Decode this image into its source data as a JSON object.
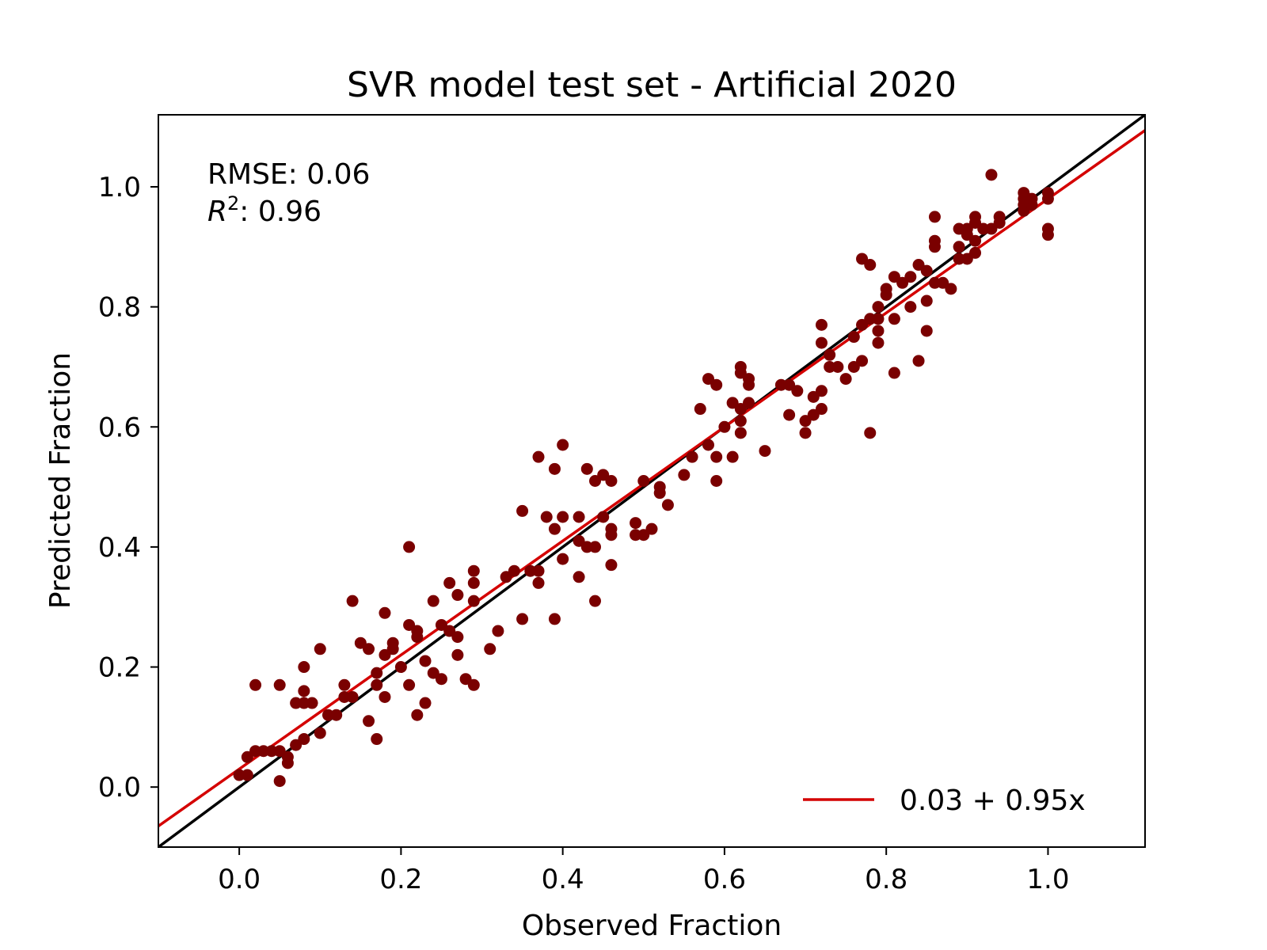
{
  "chart_data": {
    "type": "scatter",
    "title": "SVR model test set - Artificial 2020",
    "xlabel": "Observed Fraction",
    "ylabel": "Predicted Fraction",
    "xlim": [
      -0.1,
      1.12
    ],
    "ylim": [
      -0.1,
      1.12
    ],
    "xticks": [
      "0.0",
      "0.2",
      "0.4",
      "0.6",
      "0.8",
      "1.0"
    ],
    "yticks": [
      "0.0",
      "0.2",
      "0.4",
      "0.6",
      "0.8",
      "1.0"
    ],
    "annotations": {
      "rmse": "RMSE: 0.06",
      "r2_symbol": "R",
      "r2_exp": "2",
      "r2_value": ": 0.96"
    },
    "point_color": "#7a0000",
    "identity_color": "#000000",
    "fit_color": "#d40000",
    "fit": {
      "intercept": 0.03,
      "slope": 0.95,
      "label": "0.03 + 0.95x"
    },
    "legend_position": "lower-right",
    "grid": false,
    "points": [
      [
        0.0,
        0.02
      ],
      [
        0.01,
        0.02
      ],
      [
        0.01,
        0.05
      ],
      [
        0.02,
        0.06
      ],
      [
        0.02,
        0.17
      ],
      [
        0.03,
        0.06
      ],
      [
        0.04,
        0.06
      ],
      [
        0.05,
        0.06
      ],
      [
        0.05,
        0.01
      ],
      [
        0.05,
        0.17
      ],
      [
        0.06,
        0.04
      ],
      [
        0.06,
        0.05
      ],
      [
        0.07,
        0.14
      ],
      [
        0.07,
        0.07
      ],
      [
        0.08,
        0.08
      ],
      [
        0.08,
        0.14
      ],
      [
        0.08,
        0.16
      ],
      [
        0.08,
        0.2
      ],
      [
        0.09,
        0.14
      ],
      [
        0.1,
        0.09
      ],
      [
        0.1,
        0.23
      ],
      [
        0.11,
        0.12
      ],
      [
        0.12,
        0.12
      ],
      [
        0.13,
        0.17
      ],
      [
        0.13,
        0.15
      ],
      [
        0.14,
        0.31
      ],
      [
        0.14,
        0.15
      ],
      [
        0.15,
        0.24
      ],
      [
        0.16,
        0.23
      ],
      [
        0.16,
        0.11
      ],
      [
        0.17,
        0.19
      ],
      [
        0.17,
        0.17
      ],
      [
        0.17,
        0.08
      ],
      [
        0.18,
        0.15
      ],
      [
        0.18,
        0.22
      ],
      [
        0.18,
        0.29
      ],
      [
        0.19,
        0.24
      ],
      [
        0.19,
        0.23
      ],
      [
        0.2,
        0.2
      ],
      [
        0.21,
        0.17
      ],
      [
        0.21,
        0.4
      ],
      [
        0.21,
        0.27
      ],
      [
        0.22,
        0.25
      ],
      [
        0.22,
        0.26
      ],
      [
        0.22,
        0.12
      ],
      [
        0.23,
        0.14
      ],
      [
        0.23,
        0.21
      ],
      [
        0.24,
        0.31
      ],
      [
        0.24,
        0.19
      ],
      [
        0.25,
        0.18
      ],
      [
        0.25,
        0.27
      ],
      [
        0.26,
        0.34
      ],
      [
        0.26,
        0.26
      ],
      [
        0.27,
        0.22
      ],
      [
        0.27,
        0.32
      ],
      [
        0.27,
        0.25
      ],
      [
        0.28,
        0.18
      ],
      [
        0.29,
        0.31
      ],
      [
        0.29,
        0.36
      ],
      [
        0.29,
        0.17
      ],
      [
        0.29,
        0.34
      ],
      [
        0.31,
        0.23
      ],
      [
        0.32,
        0.26
      ],
      [
        0.33,
        0.35
      ],
      [
        0.34,
        0.36
      ],
      [
        0.35,
        0.46
      ],
      [
        0.35,
        0.28
      ],
      [
        0.36,
        0.36
      ],
      [
        0.37,
        0.34
      ],
      [
        0.37,
        0.36
      ],
      [
        0.37,
        0.55
      ],
      [
        0.38,
        0.45
      ],
      [
        0.39,
        0.43
      ],
      [
        0.39,
        0.53
      ],
      [
        0.39,
        0.28
      ],
      [
        0.4,
        0.57
      ],
      [
        0.4,
        0.45
      ],
      [
        0.4,
        0.38
      ],
      [
        0.42,
        0.35
      ],
      [
        0.42,
        0.41
      ],
      [
        0.42,
        0.45
      ],
      [
        0.43,
        0.4
      ],
      [
        0.43,
        0.53
      ],
      [
        0.44,
        0.31
      ],
      [
        0.44,
        0.4
      ],
      [
        0.44,
        0.51
      ],
      [
        0.45,
        0.52
      ],
      [
        0.45,
        0.45
      ],
      [
        0.46,
        0.51
      ],
      [
        0.46,
        0.37
      ],
      [
        0.46,
        0.42
      ],
      [
        0.46,
        0.43
      ],
      [
        0.49,
        0.44
      ],
      [
        0.49,
        0.42
      ],
      [
        0.5,
        0.42
      ],
      [
        0.5,
        0.51
      ],
      [
        0.51,
        0.43
      ],
      [
        0.52,
        0.5
      ],
      [
        0.52,
        0.49
      ],
      [
        0.53,
        0.47
      ],
      [
        0.55,
        0.52
      ],
      [
        0.56,
        0.55
      ],
      [
        0.57,
        0.63
      ],
      [
        0.58,
        0.57
      ],
      [
        0.58,
        0.68
      ],
      [
        0.59,
        0.55
      ],
      [
        0.59,
        0.51
      ],
      [
        0.59,
        0.67
      ],
      [
        0.6,
        0.6
      ],
      [
        0.61,
        0.55
      ],
      [
        0.61,
        0.64
      ],
      [
        0.62,
        0.63
      ],
      [
        0.62,
        0.59
      ],
      [
        0.62,
        0.61
      ],
      [
        0.62,
        0.7
      ],
      [
        0.62,
        0.69
      ],
      [
        0.63,
        0.64
      ],
      [
        0.63,
        0.68
      ],
      [
        0.63,
        0.67
      ],
      [
        0.65,
        0.56
      ],
      [
        0.67,
        0.67
      ],
      [
        0.68,
        0.62
      ],
      [
        0.68,
        0.67
      ],
      [
        0.69,
        0.66
      ],
      [
        0.7,
        0.61
      ],
      [
        0.7,
        0.59
      ],
      [
        0.71,
        0.65
      ],
      [
        0.71,
        0.62
      ],
      [
        0.72,
        0.74
      ],
      [
        0.72,
        0.66
      ],
      [
        0.72,
        0.77
      ],
      [
        0.72,
        0.63
      ],
      [
        0.73,
        0.72
      ],
      [
        0.73,
        0.7
      ],
      [
        0.74,
        0.7
      ],
      [
        0.75,
        0.68
      ],
      [
        0.76,
        0.75
      ],
      [
        0.76,
        0.7
      ],
      [
        0.77,
        0.77
      ],
      [
        0.77,
        0.71
      ],
      [
        0.77,
        0.88
      ],
      [
        0.78,
        0.59
      ],
      [
        0.78,
        0.78
      ],
      [
        0.78,
        0.87
      ],
      [
        0.79,
        0.8
      ],
      [
        0.79,
        0.78
      ],
      [
        0.79,
        0.76
      ],
      [
        0.79,
        0.74
      ],
      [
        0.8,
        0.82
      ],
      [
        0.8,
        0.83
      ],
      [
        0.81,
        0.78
      ],
      [
        0.81,
        0.69
      ],
      [
        0.81,
        0.85
      ],
      [
        0.82,
        0.84
      ],
      [
        0.83,
        0.85
      ],
      [
        0.83,
        0.8
      ],
      [
        0.84,
        0.71
      ],
      [
        0.84,
        0.87
      ],
      [
        0.85,
        0.76
      ],
      [
        0.85,
        0.86
      ],
      [
        0.85,
        0.81
      ],
      [
        0.86,
        0.84
      ],
      [
        0.86,
        0.9
      ],
      [
        0.86,
        0.91
      ],
      [
        0.86,
        0.95
      ],
      [
        0.87,
        0.84
      ],
      [
        0.88,
        0.83
      ],
      [
        0.89,
        0.88
      ],
      [
        0.89,
        0.93
      ],
      [
        0.89,
        0.9
      ],
      [
        0.9,
        0.93
      ],
      [
        0.9,
        0.92
      ],
      [
        0.9,
        0.88
      ],
      [
        0.91,
        0.91
      ],
      [
        0.91,
        0.95
      ],
      [
        0.91,
        0.89
      ],
      [
        0.91,
        0.94
      ],
      [
        0.92,
        0.93
      ],
      [
        0.93,
        1.02
      ],
      [
        0.93,
        0.93
      ],
      [
        0.94,
        0.94
      ],
      [
        0.94,
        0.95
      ],
      [
        0.97,
        0.99
      ],
      [
        0.97,
        0.98
      ],
      [
        0.97,
        0.97
      ],
      [
        0.97,
        0.96
      ],
      [
        0.98,
        0.97
      ],
      [
        0.98,
        0.98
      ],
      [
        1.0,
        0.98
      ],
      [
        1.0,
        0.99
      ],
      [
        1.0,
        0.93
      ],
      [
        1.0,
        0.92
      ]
    ]
  }
}
